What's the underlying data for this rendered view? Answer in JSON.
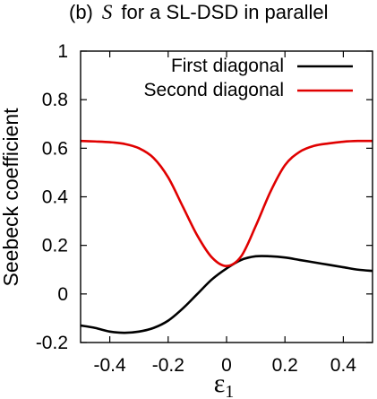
{
  "chart_data": {
    "type": "line",
    "title": {
      "prefix": "(b)",
      "symbol": "S",
      "rest": "for a SL-DSD in parallel"
    },
    "ylabel": "Seebeck coefficient",
    "xlabel": {
      "main": "ε",
      "sub": "1"
    },
    "xlim": [
      -0.5,
      0.5
    ],
    "ylim": [
      -0.2,
      1.0
    ],
    "xticks": [
      -0.4,
      -0.2,
      0,
      0.2,
      0.4
    ],
    "xtick_labels": [
      "-0.4",
      "-0.2",
      "0",
      "0.2",
      "0.4"
    ],
    "yticks": [
      -0.2,
      0,
      0.2,
      0.4,
      0.6,
      0.8,
      1
    ],
    "ytick_labels": [
      "-0.2",
      "0",
      "0.2",
      "0.4",
      "0.6",
      "0.8",
      "1"
    ],
    "grid": false,
    "legend_position": "top-right",
    "series": [
      {
        "name": "First diagonal",
        "color": "#000000",
        "x": [
          -0.5,
          -0.45,
          -0.4,
          -0.35,
          -0.3,
          -0.25,
          -0.2,
          -0.15,
          -0.1,
          -0.05,
          0,
          0.05,
          0.1,
          0.15,
          0.2,
          0.25,
          0.3,
          0.35,
          0.4,
          0.45,
          0.5
        ],
        "y": [
          -0.13,
          -0.14,
          -0.155,
          -0.16,
          -0.155,
          -0.14,
          -0.11,
          -0.06,
          0.0,
          0.06,
          0.105,
          0.14,
          0.155,
          0.155,
          0.15,
          0.14,
          0.13,
          0.12,
          0.11,
          0.1,
          0.095
        ]
      },
      {
        "name": "Second diagonal",
        "color": "#e00000",
        "x": [
          -0.5,
          -0.45,
          -0.4,
          -0.35,
          -0.3,
          -0.25,
          -0.2,
          -0.15,
          -0.1,
          -0.05,
          0,
          0.05,
          0.1,
          0.15,
          0.2,
          0.25,
          0.3,
          0.35,
          0.4,
          0.45,
          0.5
        ],
        "y": [
          0.63,
          0.628,
          0.625,
          0.618,
          0.6,
          0.56,
          0.48,
          0.36,
          0.24,
          0.15,
          0.115,
          0.155,
          0.28,
          0.42,
          0.53,
          0.585,
          0.61,
          0.62,
          0.627,
          0.63,
          0.63
        ]
      }
    ]
  }
}
